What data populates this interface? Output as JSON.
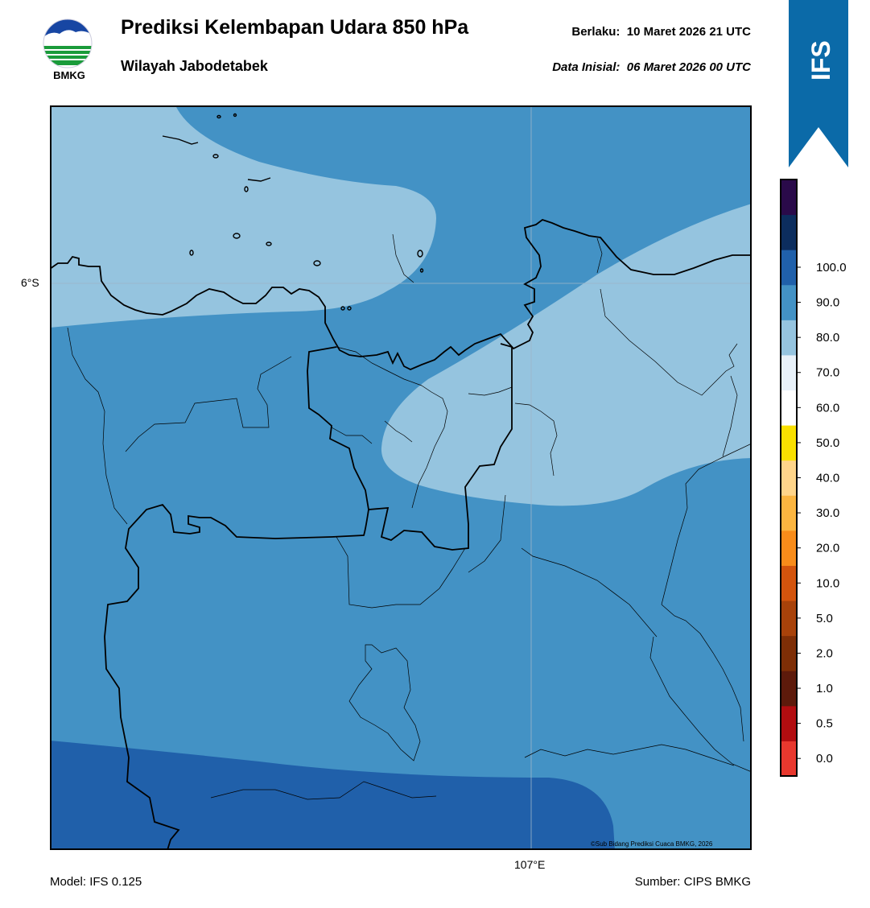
{
  "header": {
    "title": "Prediksi Kelembapan Udara 850 hPa",
    "subtitle": "Wilayah Jabodetabek",
    "valid_label": "Berlaku:",
    "valid_value": "10 Maret 2026 21 UTC",
    "init_label": "Data Inisial:",
    "init_value": "06 Maret 2026 00 UTC"
  },
  "logo": {
    "text": "BMKG",
    "icon": "bmkg-logo-icon"
  },
  "ribbon": {
    "text": "IFS",
    "color": "#0b6aa8"
  },
  "map": {
    "lat_label": "6°S",
    "lon_label": "107°E",
    "copyright": "©Sub Bidang Prediksi Cuaca BMKG, 2026"
  },
  "footer": {
    "model": "Model: IFS 0.125",
    "source": "Sumber: CIPS BMKG"
  },
  "colorbar": {
    "ticks": [
      "0.0",
      "0.5",
      "1.0",
      "2.0",
      "5.0",
      "10.0",
      "20.0",
      "30.0",
      "40.0",
      "50.0",
      "60.0",
      "70.0",
      "80.0",
      "90.0",
      "100.0"
    ],
    "colors": [
      "#e8382e",
      "#b20d10",
      "#5d1a0b",
      "#7e2e06",
      "#a8420a",
      "#d3540d",
      "#f88c1a",
      "#fbb540",
      "#ffd58a",
      "#f9e000",
      "#ffffff",
      "#e8f1f9",
      "#95c4df",
      "#4392c5",
      "#2060aa",
      "#0c2d5e",
      "#2a0a4a"
    ]
  }
}
